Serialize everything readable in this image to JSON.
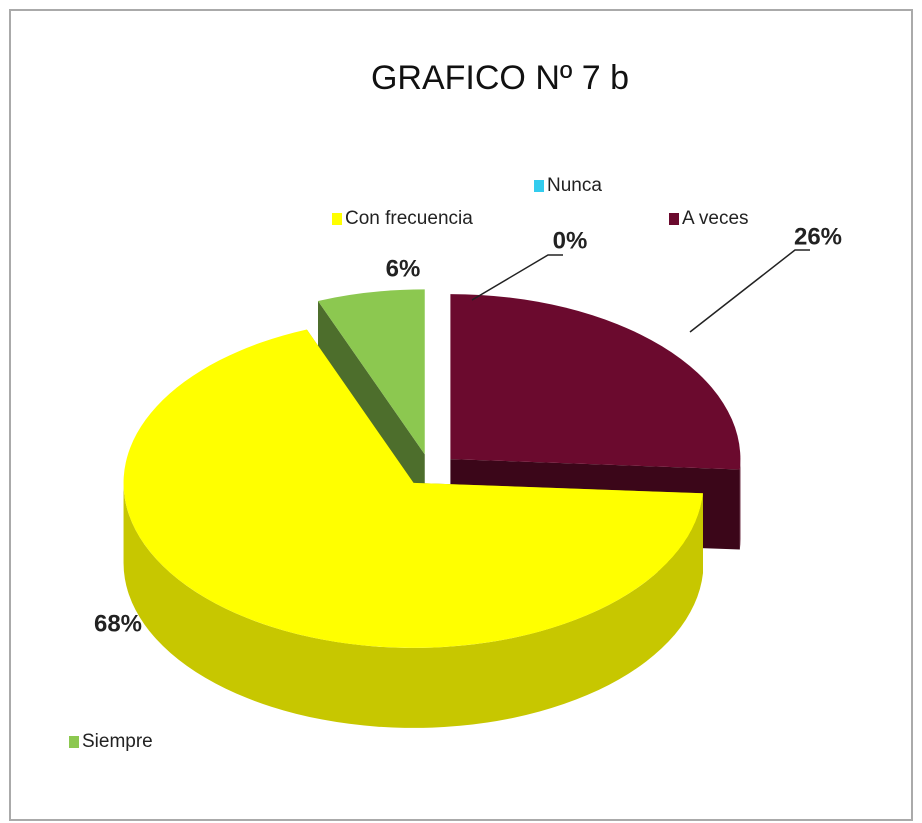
{
  "chart_data": {
    "type": "pie",
    "title": "GRAFICO  Nº 7 b",
    "categories": [
      "Nunca",
      "A veces",
      "Con frecuencia",
      "Siempre"
    ],
    "values": [
      0,
      26,
      68,
      6
    ],
    "value_labels": [
      "0%",
      "26%",
      "68%",
      "6%"
    ],
    "colors": [
      "#33ccee",
      "#6b0a2e",
      "#ffff00",
      "#8cc850"
    ]
  }
}
